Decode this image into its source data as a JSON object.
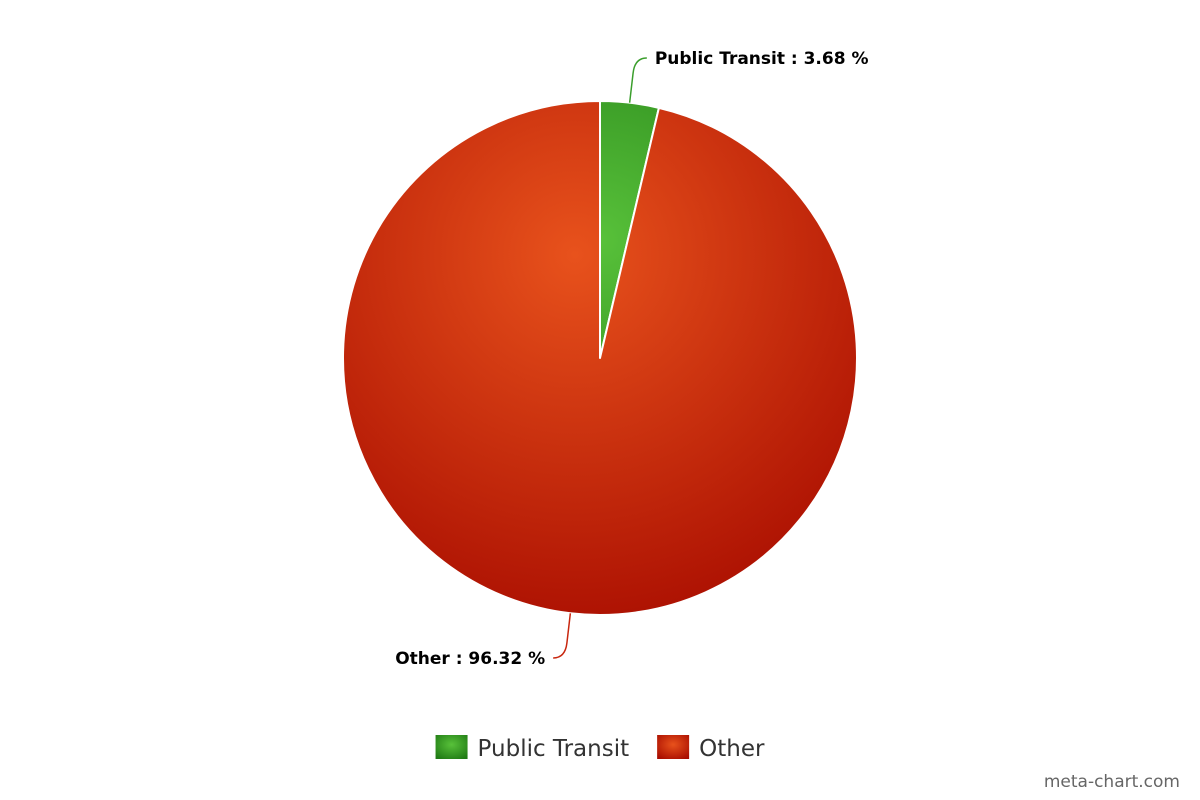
{
  "chart_data": {
    "type": "pie",
    "title": "",
    "slices": [
      {
        "name": "Public Transit",
        "value": 3.68,
        "label": "Public Transit : 3.68 %",
        "color": "#3a9e2c"
      },
      {
        "name": "Other",
        "value": 96.32,
        "label": "Other : 96.32 %",
        "color": "#c8260e"
      }
    ],
    "legend": {
      "position": "bottom",
      "entries": [
        "Public Transit",
        "Other"
      ]
    }
  },
  "credit": "meta-chart.com"
}
